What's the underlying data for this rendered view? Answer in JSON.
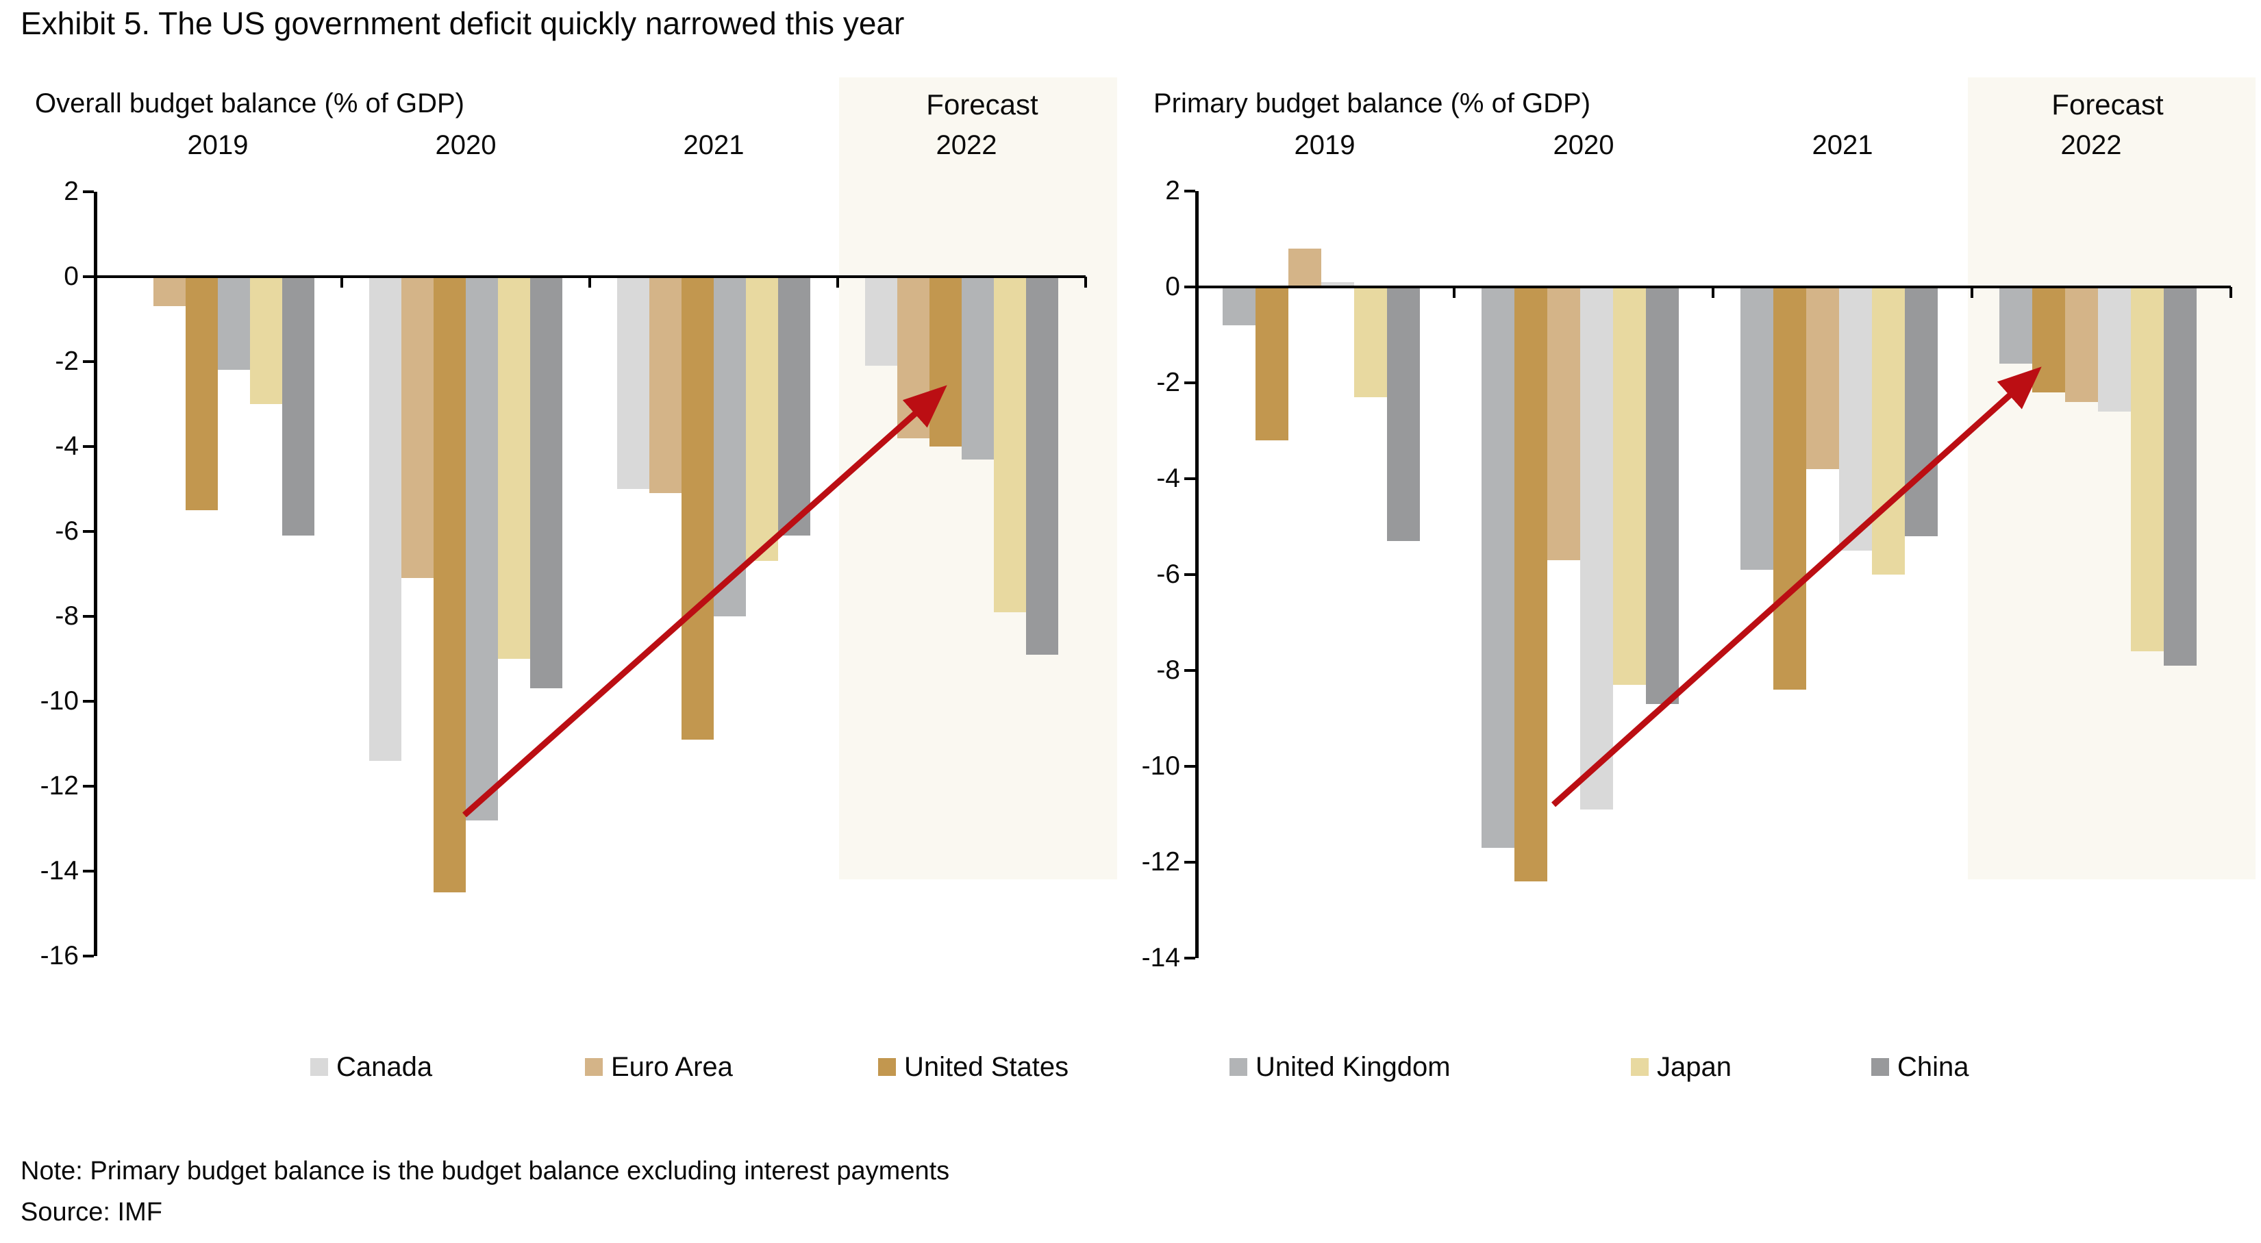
{
  "page": {
    "title": "Exhibit 5. The US government deficit quickly narrowed this year",
    "note": "Note: Primary budget balance is the budget balance excluding interest payments",
    "source": "Source: IMF"
  },
  "forecast_label": "Forecast",
  "colors": {
    "Canada": "#d9d9d9",
    "Euro Area": "#d4b488",
    "United States": "#c2974f",
    "United Kingdom": "#b2b4b6",
    "Japan": "#e8d9a0",
    "China": "#98999b",
    "arrow": "#bb0e13",
    "forecast_band": "#faf8f1",
    "axis": "#000000"
  },
  "legend": [
    {
      "label": "Canada"
    },
    {
      "label": "Euro Area"
    },
    {
      "label": "United States"
    },
    {
      "label": "United Kingdom"
    },
    {
      "label": "Japan"
    },
    {
      "label": "China"
    }
  ],
  "chart_data": [
    {
      "type": "bar",
      "title": "Overall budget balance (% of GDP)",
      "categories": [
        "2019",
        "2020",
        "2021",
        "2022"
      ],
      "forecast_category": "2022",
      "ylim": [
        -16,
        2
      ],
      "ytick_labels": [
        2,
        0,
        -2,
        -4,
        -6,
        -8,
        -10,
        -12,
        -14,
        -16
      ],
      "grid": false,
      "series": [
        {
          "name": "Canada",
          "values": [
            0.0,
            -11.4,
            -5.0,
            -2.1
          ]
        },
        {
          "name": "Euro Area",
          "values": [
            -0.7,
            -7.1,
            -5.1,
            -3.8
          ]
        },
        {
          "name": "United States",
          "values": [
            -5.5,
            -14.5,
            -10.9,
            -4.0
          ]
        },
        {
          "name": "United Kingdom",
          "values": [
            -2.2,
            -12.8,
            -8.0,
            -4.3
          ]
        },
        {
          "name": "Japan",
          "values": [
            -3.0,
            -9.0,
            -6.7,
            -7.9
          ]
        },
        {
          "name": "China",
          "values": [
            -6.1,
            -9.7,
            -6.1,
            -8.9
          ]
        }
      ],
      "annotation": {
        "type": "arrow",
        "from": "United States 2020 bar",
        "to": "United States 2022 forecast bar"
      }
    },
    {
      "type": "bar",
      "title": "Primary budget balance (% of GDP)",
      "categories": [
        "2019",
        "2020",
        "2021",
        "2022"
      ],
      "forecast_category": "2022",
      "ylim": [
        -14,
        2
      ],
      "ytick_labels": [
        2,
        0,
        -2,
        -4,
        -6,
        -8,
        -10,
        -12,
        -14
      ],
      "grid": false,
      "series": [
        {
          "name": "United Kingdom",
          "values": [
            -0.8,
            -11.7,
            -5.9,
            -1.6
          ]
        },
        {
          "name": "United States",
          "values": [
            -3.2,
            -12.4,
            -8.4,
            -2.2
          ]
        },
        {
          "name": "Euro Area",
          "values": [
            0.8,
            -5.7,
            -3.8,
            -2.4
          ]
        },
        {
          "name": "Canada",
          "values": [
            0.1,
            -10.9,
            -5.5,
            -2.6
          ]
        },
        {
          "name": "Japan",
          "values": [
            -2.3,
            -8.3,
            -6.0,
            -7.6
          ]
        },
        {
          "name": "China",
          "values": [
            -5.3,
            -8.7,
            -5.2,
            -7.9
          ]
        }
      ],
      "annotation": {
        "type": "arrow",
        "from": "United States 2020 bar",
        "to": "United States 2022 forecast bar"
      }
    }
  ]
}
